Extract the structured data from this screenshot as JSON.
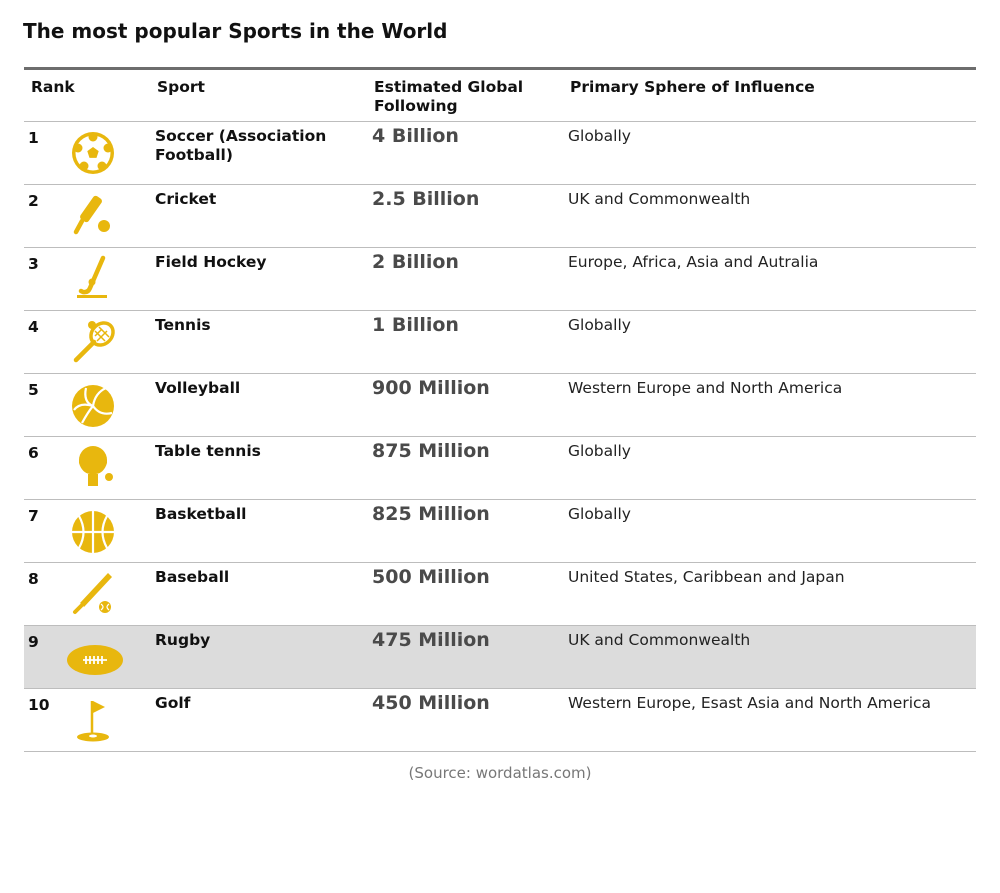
{
  "title": "The most popular Sports in the World",
  "colors": {
    "icon": "#e8b70e",
    "highlight_row": "#dcdcdc",
    "rule": "#6d6d6d"
  },
  "headers": {
    "rank": "Rank",
    "sport": "Sport",
    "following": "Estimated Global Following",
    "sphere": "Primary Sphere of Influence"
  },
  "rows": [
    {
      "rank": "1",
      "icon": "soccer-ball-icon",
      "sport": "Soccer (Association Football)",
      "following": "4 Billion",
      "sphere": "Globally"
    },
    {
      "rank": "2",
      "icon": "cricket-bat-ball-icon",
      "sport": "Cricket",
      "following": "2.5 Billion",
      "sphere": "UK and Commonwealth"
    },
    {
      "rank": "3",
      "icon": "hockey-stick-icon",
      "sport": "Field Hockey",
      "following": "2 Billion",
      "sphere": "Europe, Africa, Asia and Autralia"
    },
    {
      "rank": "4",
      "icon": "tennis-racket-icon",
      "sport": "Tennis",
      "following": "1 Billion",
      "sphere": "Globally"
    },
    {
      "rank": "5",
      "icon": "volleyball-icon",
      "sport": "Volleyball",
      "following": "900 Million",
      "sphere": "Western Europe and North America"
    },
    {
      "rank": "6",
      "icon": "table-tennis-paddle-icon",
      "sport": "Table tennis",
      "following": "875 Million",
      "sphere": "Globally"
    },
    {
      "rank": "7",
      "icon": "basketball-icon",
      "sport": "Basketball",
      "following": "825 Million",
      "sphere": "Globally"
    },
    {
      "rank": "8",
      "icon": "baseball-bat-icon",
      "sport": "Baseball",
      "following": "500 Million",
      "sphere": "United States, Caribbean and Japan"
    },
    {
      "rank": "9",
      "icon": "rugby-ball-icon",
      "sport": "Rugby",
      "following": "475 Million",
      "sphere": "UK and Commonwealth"
    },
    {
      "rank": "10",
      "icon": "golf-flag-icon",
      "sport": "Golf",
      "following": "450 Million",
      "sphere": "Western Europe, Esast Asia and North America"
    }
  ],
  "source": "(Source: wordatlas.com)"
}
